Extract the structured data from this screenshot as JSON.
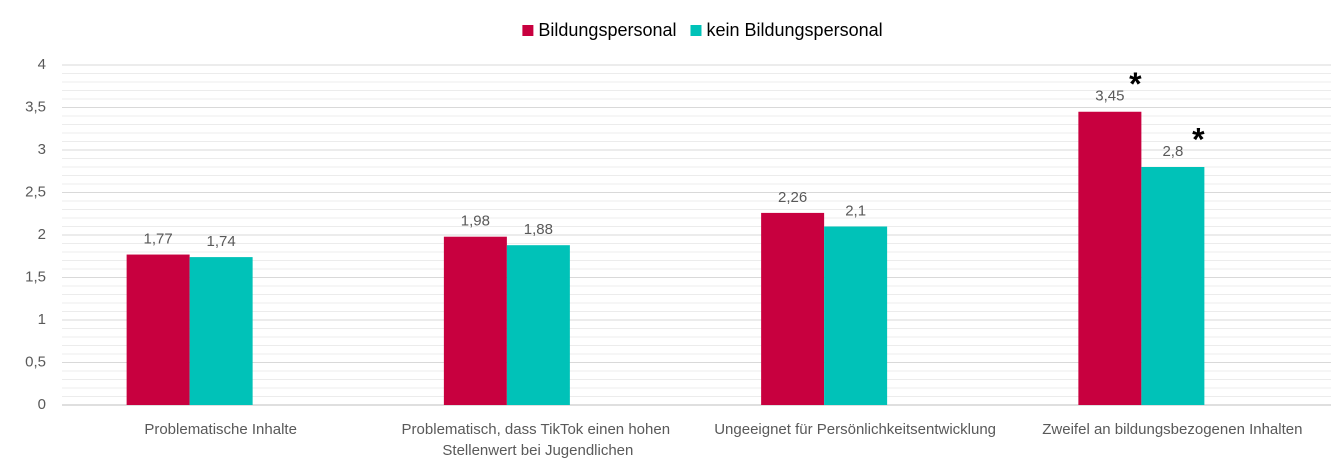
{
  "chart_data": {
    "type": "bar",
    "categories": [
      "Problematische Inhalte",
      "Problematisch, dass TikTok einen hohen Stellenwert bei Jugendlichen",
      "Ungeeignet für Persönlichkeitsentwicklung",
      "Zweifel an bildungsbezogenen Inhalten"
    ],
    "series": [
      {
        "name": "Bildungspersonal",
        "color": "#c8003f",
        "values": [
          1.77,
          1.98,
          2.26,
          3.45
        ],
        "value_labels": [
          "1,77",
          "1,98",
          "2,26",
          "3,45"
        ]
      },
      {
        "name": "kein Bildungspersonal",
        "color": "#00c2b8",
        "values": [
          1.74,
          1.88,
          2.1,
          2.8
        ],
        "value_labels": [
          "1,74",
          "1,88",
          "2,1",
          "2,8"
        ]
      }
    ],
    "ylim": [
      0,
      4
    ],
    "yticks": [
      0,
      {
        "value": 0.5,
        "label": "0,5"
      },
      1,
      {
        "value": 1.5,
        "label": "1,5"
      },
      2,
      {
        "value": 2.5,
        "label": "2,5"
      },
      3,
      {
        "value": 3.5,
        "label": "3,5"
      },
      4
    ],
    "grid": true,
    "minor_divisions": 5,
    "legend": "top",
    "annotations": [
      {
        "text": "*",
        "category": "Zweifel an bildungsbezogenen Inhalten",
        "series": "Bildungspersonal"
      },
      {
        "text": "*",
        "category": "Zweifel an bildungsbezogenen Inhalten",
        "series": "kein Bildungspersonal"
      }
    ]
  }
}
